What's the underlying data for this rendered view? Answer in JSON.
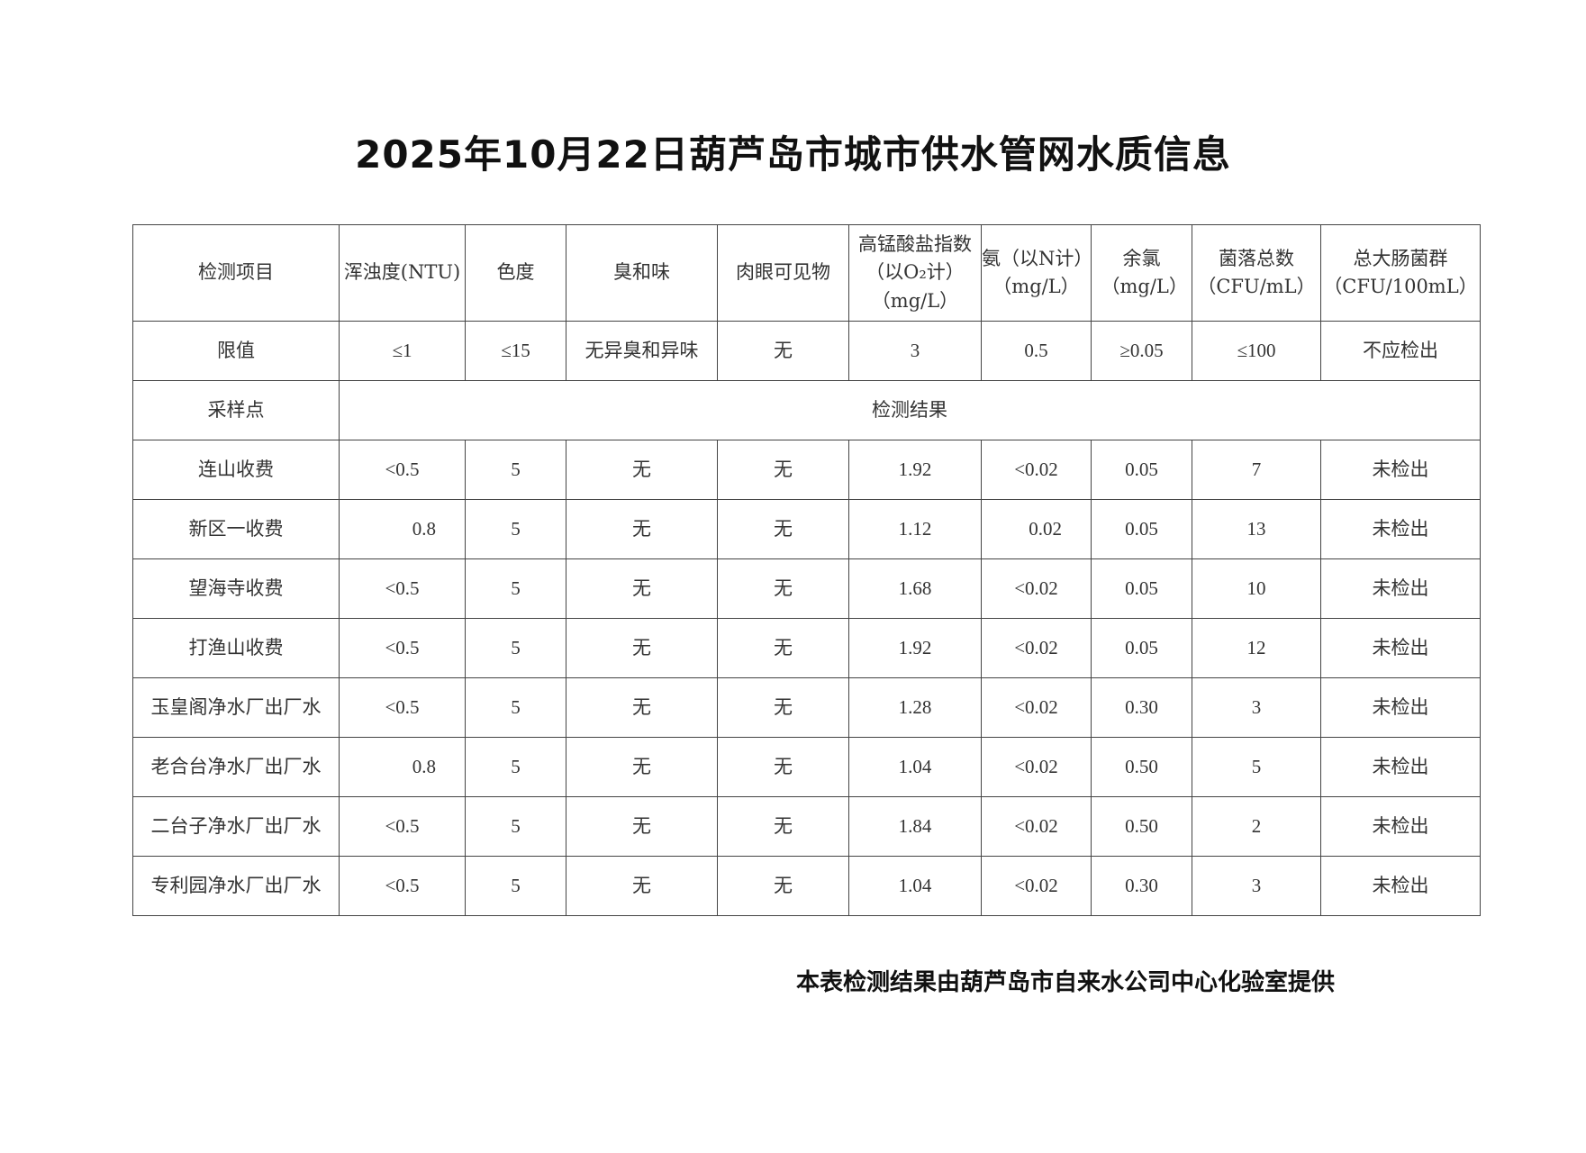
{
  "title": "2025年10月22日葫芦岛市城市供水管网水质信息",
  "table": {
    "headers": [
      "检测项目",
      "浑浊度(NTU)",
      "色度",
      "臭和味",
      "肉眼可见物",
      "高锰酸盐指数（以O₂计）（mg/L）",
      "氨（以N计）（mg/L）",
      "余氯（mg/L）",
      "菌落总数（CFU/mL）",
      "总大肠菌群（CFU/100mL）"
    ],
    "header_lines": [
      [
        "检测项目"
      ],
      [
        "浑浊度(NTU)"
      ],
      [
        "色度"
      ],
      [
        "臭和味"
      ],
      [
        "肉眼可见物"
      ],
      [
        "高锰酸盐指数",
        "（以O₂计）",
        "（mg/L）"
      ],
      [
        "氨（以N计）",
        "（mg/L）"
      ],
      [
        "余氯",
        "（mg/L）"
      ],
      [
        "菌落总数",
        "（CFU/mL）"
      ],
      [
        "总大肠菌群",
        "（CFU/100mL）"
      ]
    ],
    "limits": [
      "限值",
      "≤1",
      "≤15",
      "无异臭和异味",
      "无",
      "3",
      "0.5",
      "≥0.05",
      "≤100",
      "不应检出"
    ],
    "section": {
      "label": "采样点",
      "results_label": "检测结果"
    },
    "rows": [
      [
        "连山收费",
        "<0.5",
        "5",
        "无",
        "无",
        "1.92",
        "<0.02",
        "0.05",
        "7",
        "未检出"
      ],
      [
        "新区一收费",
        "0.8",
        "5",
        "无",
        "无",
        "1.12",
        "0.02",
        "0.05",
        "13",
        "未检出"
      ],
      [
        "望海寺收费",
        "<0.5",
        "5",
        "无",
        "无",
        "1.68",
        "<0.02",
        "0.05",
        "10",
        "未检出"
      ],
      [
        "打渔山收费",
        "<0.5",
        "5",
        "无",
        "无",
        "1.92",
        "<0.02",
        "0.05",
        "12",
        "未检出"
      ],
      [
        "玉皇阁净水厂出厂水",
        "<0.5",
        "5",
        "无",
        "无",
        "1.28",
        "<0.02",
        "0.30",
        "3",
        "未检出"
      ],
      [
        "老合台净水厂出厂水",
        "0.8",
        "5",
        "无",
        "无",
        "1.04",
        "<0.02",
        "0.50",
        "5",
        "未检出"
      ],
      [
        "二台子净水厂出厂水",
        "<0.5",
        "5",
        "无",
        "无",
        "1.84",
        "<0.02",
        "0.50",
        "2",
        "未检出"
      ],
      [
        "专利园净水厂出厂水",
        "<0.5",
        "5",
        "无",
        "无",
        "1.04",
        "<0.02",
        "0.30",
        "3",
        "未检出"
      ]
    ]
  },
  "footer": "本表检测结果由葫芦岛市自来水公司中心化验室提供"
}
